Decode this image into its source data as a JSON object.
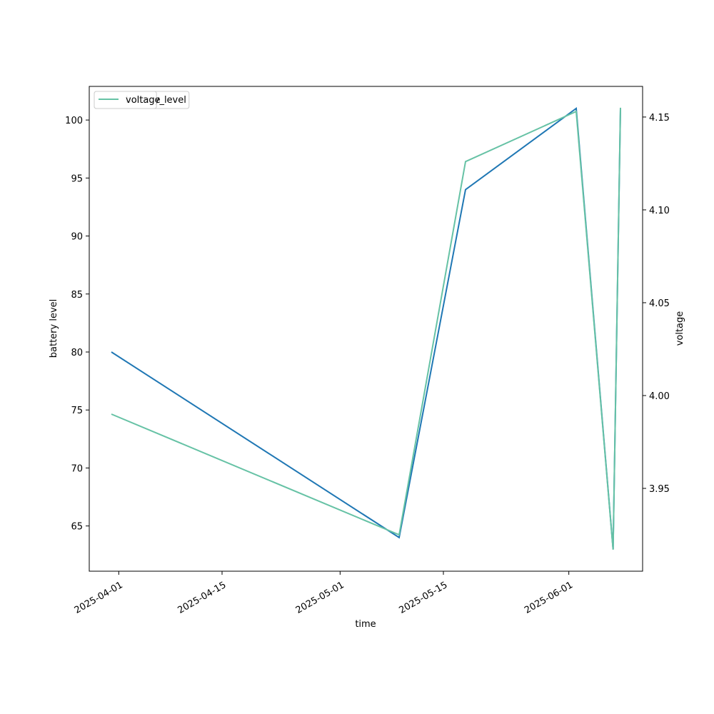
{
  "chart_data": {
    "type": "line",
    "x_label": "time",
    "y_label": "battery level",
    "y2_label": "voltage",
    "x": [
      "2025-03-31",
      "2025-05-09",
      "2025-05-18",
      "2025-06-02",
      "2025-06-07",
      "2025-06-08"
    ],
    "series": [
      {
        "name": "battery_level",
        "color": "#1f77b4",
        "values": [
          80,
          64,
          94,
          101,
          63,
          101
        ]
      },
      {
        "name": "voltage",
        "color": "#66c2a5",
        "axis": "y2",
        "values": [
          3.99,
          3.925,
          4.126,
          4.153,
          3.917,
          4.155
        ]
      }
    ],
    "xlim": [
      "2025-03-28",
      "2025-06-11"
    ],
    "xticks": [
      "2025-04-01",
      "2025-04-15",
      "2025-05-01",
      "2025-05-15",
      "2025-06-01"
    ],
    "ylim": [
      61.1,
      102.9
    ],
    "yticks": [
      65,
      70,
      75,
      80,
      85,
      90,
      95,
      100
    ],
    "y2lim": [
      3.9054,
      4.1665
    ],
    "y2ticks": [
      {
        "value": 3.95,
        "label": "3.95"
      },
      {
        "value": 4.0,
        "label": "4.00"
      },
      {
        "value": 4.05,
        "label": "4.05"
      },
      {
        "value": 4.1,
        "label": "4.10"
      },
      {
        "value": 4.15,
        "label": "4.15"
      }
    ],
    "legend": "upper left",
    "grid": false
  }
}
